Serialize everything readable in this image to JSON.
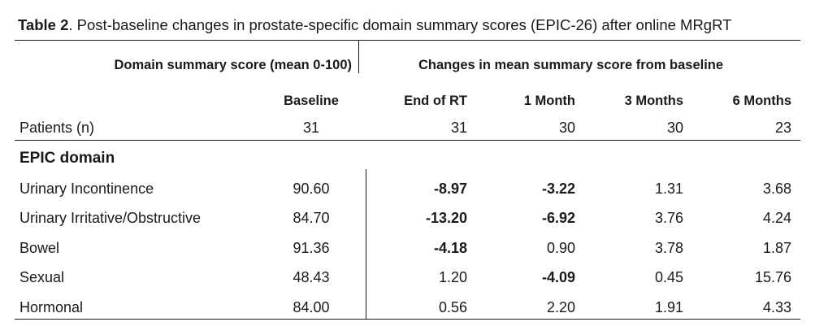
{
  "caption": {
    "label": "Table 2",
    "text": ". Post-baseline changes in prostate-specific domain summary scores (EPIC-26) after online MRgRT"
  },
  "header": {
    "group_left": "Domain summary score (mean 0-100)",
    "group_right": "Changes in mean summary score from baseline",
    "columns": [
      "Baseline",
      "End of RT",
      "1 Month",
      "3 Months",
      "6 Months"
    ]
  },
  "patients": {
    "label": "Patients (n)",
    "values": [
      "31",
      "31",
      "30",
      "30",
      "23"
    ]
  },
  "section_label": "EPIC domain",
  "rows": [
    {
      "label": "Urinary Incontinence",
      "values": [
        "90.60",
        "-8.97",
        "-3.22",
        "1.31",
        "3.68"
      ],
      "bold": [
        false,
        true,
        true,
        false,
        false
      ]
    },
    {
      "label": "Urinary Irritative/Obstructive",
      "values": [
        "84.70",
        "-13.20",
        "-6.92",
        "3.76",
        "4.24"
      ],
      "bold": [
        false,
        true,
        true,
        false,
        false
      ]
    },
    {
      "label": "Bowel",
      "values": [
        "91.36",
        "-4.18",
        "0.90",
        "3.78",
        "1.87"
      ],
      "bold": [
        false,
        true,
        false,
        false,
        false
      ]
    },
    {
      "label": "Sexual",
      "values": [
        "48.43",
        "1.20",
        "-4.09",
        "0.45",
        "15.76"
      ],
      "bold": [
        false,
        false,
        true,
        false,
        false
      ]
    },
    {
      "label": "Hormonal",
      "values": [
        "84.00",
        "0.56",
        "2.20",
        "1.91",
        "4.33"
      ],
      "bold": [
        false,
        false,
        false,
        false,
        false
      ]
    }
  ]
}
